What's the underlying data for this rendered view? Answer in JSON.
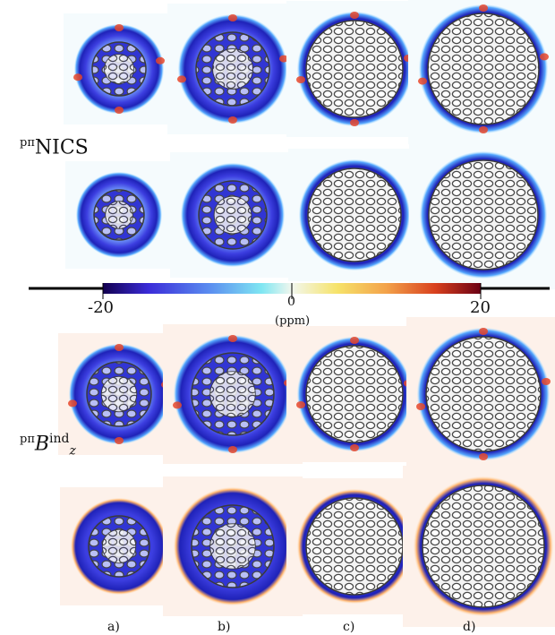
{
  "row_labels": {
    "nics": "NICS",
    "nics_prefix": "pπ",
    "bind_prefix": "pπ",
    "bind_main": "B",
    "bind_sup": "ind",
    "bind_sub": "z"
  },
  "colorbar": {
    "min_label": "-20",
    "mid_label": "0",
    "max_label": "20",
    "unit": "(ppm)",
    "min": -20,
    "max": 20,
    "colors": [
      "#12004f",
      "#3a2bd8",
      "#5a8cf0",
      "#7fe6f2",
      "#f2f7ee",
      "#f6e36a",
      "#f3a24a",
      "#d8401e",
      "#6a0014"
    ]
  },
  "columns": [
    "a)",
    "b)",
    "c)",
    "d)"
  ],
  "colors": {
    "shell": "#2f2fcf",
    "shell_dark": "#1b1b8f",
    "shell_light": "#4a6bff",
    "cage": "#555555",
    "cage_light": "#dcdcdc",
    "warm": "#e8462a",
    "deshield": "#f7c9b0"
  }
}
